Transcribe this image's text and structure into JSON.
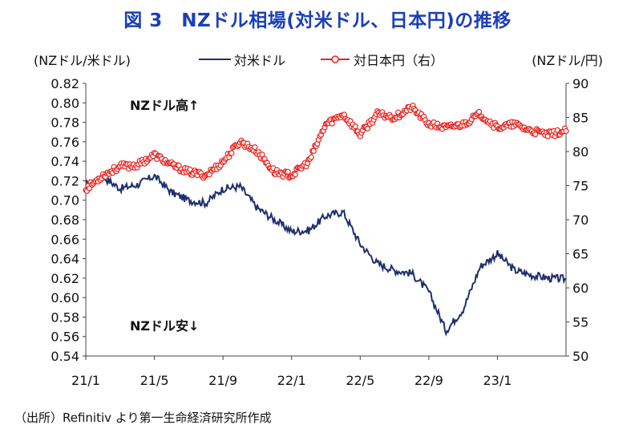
{
  "title": "図 3　NZドル相場(対米ドル、日本円)の推移",
  "source": "（出所）Refinitiv より第一生命経済研究所作成",
  "colors": {
    "title": "#1a3fb8",
    "usd_series": "#1f2f6e",
    "jpy_series": "#e8231f"
  },
  "chart_data": {
    "type": "line",
    "title": "図 3　NZドル相場(対米ドル、日本円)の推移",
    "ylabel_left": "(NZドル/米ドル)",
    "ylabel_right": "(NZドル/円)",
    "ylim_left": [
      0.54,
      0.82
    ],
    "ylim_right": [
      50,
      90
    ],
    "yticks_left": [
      "0.54",
      "0.56",
      "0.58",
      "0.60",
      "0.62",
      "0.64",
      "0.66",
      "0.68",
      "0.70",
      "0.72",
      "0.74",
      "0.76",
      "0.78",
      "0.80",
      "0.82"
    ],
    "yticks_right": [
      "50",
      "55",
      "60",
      "65",
      "70",
      "75",
      "80",
      "85",
      "90"
    ],
    "xticks": [
      "21/1",
      "21/5",
      "21/9",
      "22/1",
      "22/5",
      "22/9",
      "23/1"
    ],
    "x_range": [
      "2021-01",
      "2023-05"
    ],
    "grid": false,
    "legend_position": "top",
    "annotations": [
      "NZドル高↑",
      "NZドル安↓"
    ],
    "x": [
      "21/01",
      "21/02",
      "21/03",
      "21/04",
      "21/05",
      "21/06",
      "21/07",
      "21/08",
      "21/09",
      "21/10",
      "21/11",
      "21/12",
      "22/01",
      "22/02",
      "22/03",
      "22/04",
      "22/05",
      "22/06",
      "22/07",
      "22/08",
      "22/09",
      "22/10",
      "22/11",
      "22/12",
      "23/01",
      "23/02",
      "23/03",
      "23/04",
      "23/05"
    ],
    "series": [
      {
        "name": "対米ドル",
        "axis": "left",
        "style": "line",
        "values": [
          0.716,
          0.724,
          0.712,
          0.716,
          0.725,
          0.708,
          0.7,
          0.697,
          0.712,
          0.714,
          0.692,
          0.68,
          0.668,
          0.669,
          0.684,
          0.688,
          0.655,
          0.635,
          0.628,
          0.625,
          0.606,
          0.566,
          0.588,
          0.632,
          0.645,
          0.628,
          0.623,
          0.62,
          0.619
        ]
      },
      {
        "name": "対日本円（右）",
        "axis": "right",
        "style": "line-circle-markers",
        "values": [
          74.5,
          76.5,
          77.8,
          78.0,
          79.5,
          78.0,
          77.0,
          76.5,
          78.5,
          81.5,
          80.0,
          77.0,
          76.5,
          78.5,
          84.0,
          85.5,
          82.5,
          85.5,
          85.0,
          86.5,
          84.0,
          83.5,
          84.0,
          85.5,
          83.5,
          84.0,
          83.0,
          82.5,
          83.0
        ]
      }
    ]
  }
}
